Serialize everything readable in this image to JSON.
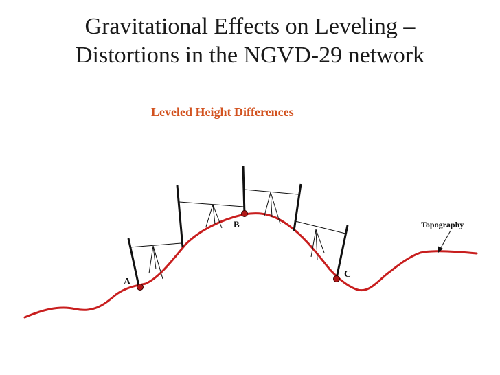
{
  "slide": {
    "title_line1": "Gravitational Effects on Leveling –",
    "title_line2": "Distortions in the NGVD-29 network",
    "subtitle": "Leveled Height Differences"
  },
  "labels": {
    "point_a": "A",
    "point_b": "B",
    "point_c": "C",
    "topography": "Topography"
  },
  "colors": {
    "topography_line": "#c81e1e",
    "subtitle": "#d2521f",
    "benchmark": "#b01818",
    "rod": "#111111"
  }
}
